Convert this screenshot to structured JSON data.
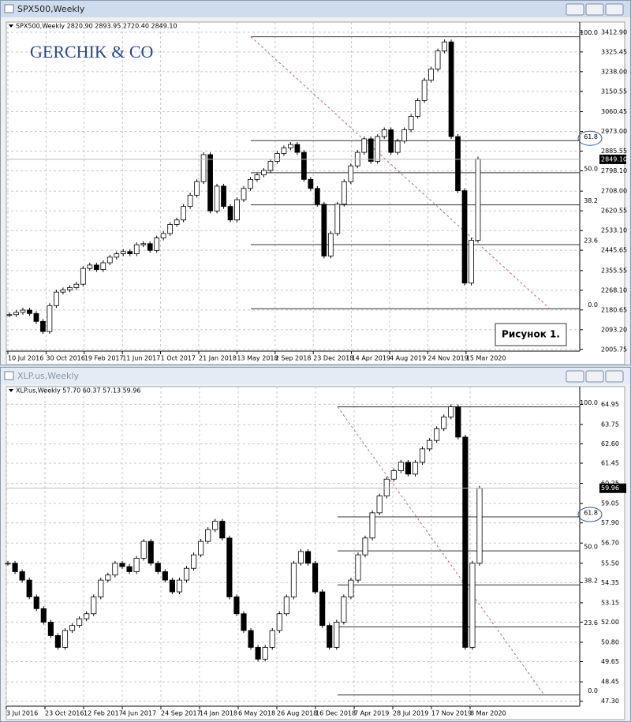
{
  "watermark": "GERCHIK & CO",
  "figure_label": "Рисунок 1.",
  "chart_data": [
    {
      "type": "candlestick",
      "title": "SPX500,Weekly",
      "subtitle": "SPX500,Weekly  2820.90 2893.95 2720.40 2849.10",
      "xtick_labels": [
        "10 Jul 2016",
        "30 Oct 2016",
        "19 Feb 2017",
        "11 Jun 2017",
        "1 Oct 2017",
        "21 Jan 2018",
        "13 May 2018",
        "2 Sep 2018",
        "23 Dec 2018",
        "14 Apr 2019",
        "4 Aug 2019",
        "24 Nov 2019",
        "15 Mar 2020"
      ],
      "closes": [
        2160,
        2170,
        2180,
        2165,
        2130,
        2085,
        2200,
        2260,
        2270,
        2280,
        2295,
        2365,
        2380,
        2360,
        2390,
        2415,
        2430,
        2440,
        2430,
        2470,
        2475,
        2445,
        2500,
        2520,
        2560,
        2580,
        2640,
        2690,
        2750,
        2870,
        2620,
        2730,
        2640,
        2580,
        2670,
        2720,
        2760,
        2780,
        2800,
        2840,
        2875,
        2900,
        2915,
        2880,
        2760,
        2720,
        2650,
        2420,
        2520,
        2650,
        2750,
        2820,
        2880,
        2940,
        2840,
        2950,
        2980,
        2880,
        2930,
        2980,
        3040,
        3110,
        3200,
        3250,
        3330,
        3370,
        2950,
        2710,
        2300,
        2490,
        2850
      ],
      "ylim": [
        1998,
        3458
      ],
      "yticks": [
        {
          "value": 3412.9,
          "label": "3412.90"
        },
        {
          "value": 3325.45,
          "label": "3325.45"
        },
        {
          "value": 3238,
          "label": "3238.00"
        },
        {
          "value": 3150.55,
          "label": "3150.55"
        },
        {
          "value": 3060.45,
          "label": "3060.45"
        },
        {
          "value": 2973,
          "label": "2973.00"
        },
        {
          "value": 2885.55,
          "label": "2885.55"
        },
        {
          "value": 2798.1,
          "label": "2798.10"
        },
        {
          "value": 2708,
          "label": "2708.00"
        },
        {
          "value": 2620.55,
          "label": "2620.55"
        },
        {
          "value": 2533.1,
          "label": "2533.10"
        },
        {
          "value": 2445.65,
          "label": "2445.65"
        },
        {
          "value": 2355.55,
          "label": "2355.55"
        },
        {
          "value": 2268.1,
          "label": "2268.10"
        },
        {
          "value": 2180.65,
          "label": "2180.65"
        },
        {
          "value": 2093.2,
          "label": "2093.20"
        },
        {
          "value": 2005.75,
          "label": "2005.75"
        }
      ],
      "last": {
        "value": 2849.1,
        "label": "2849.10"
      },
      "fib": {
        "high": 3393,
        "low": 2186,
        "levels": [
          {
            "value": 100,
            "label": "100.0"
          },
          {
            "value": 61.8,
            "label": "61.8"
          },
          {
            "value": 50,
            "label": "50.0"
          },
          {
            "value": 38.2,
            "label": "38.2"
          },
          {
            "value": 23.6,
            "label": "23.6"
          },
          {
            "value": 0,
            "label": "0.0"
          }
        ]
      },
      "grid": true
    },
    {
      "type": "candlestick",
      "title": "XLP.us,Weekly",
      "subtitle": "XLP.us,Weekly  57.70 60.37 57.13 59.96",
      "xtick_labels": [
        "3 Jul 2016",
        "23 Oct 2016",
        "12 Feb 2017",
        "4 Jun 2017",
        "24 Sep 2017",
        "14 Jan 2018",
        "6 May 2018",
        "26 Aug 2018",
        "16 Dec 2018",
        "7 Apr 2019",
        "28 Jul 2019",
        "17 Nov 2019",
        "8 Mar 2020"
      ],
      "closes": [
        55.5,
        55,
        54.5,
        53.5,
        52.8,
        52,
        51.2,
        50.5,
        51.5,
        51.8,
        52.2,
        52.5,
        53.5,
        54.5,
        54.8,
        55.5,
        55.3,
        55,
        55.8,
        56.8,
        55.5,
        55,
        54.5,
        53.8,
        54.5,
        55.2,
        56,
        56.8,
        57.5,
        58,
        57,
        53.5,
        52.5,
        51.5,
        50.5,
        49.8,
        50.5,
        51.5,
        52.5,
        53.5,
        55.5,
        56.2,
        55.5,
        53.8,
        51.8,
        50.5,
        52,
        53.5,
        54.5,
        56,
        57,
        58.5,
        59.5,
        60.5,
        61,
        61.5,
        60.8,
        61.5,
        62.3,
        62.8,
        63.5,
        64.2,
        64.8,
        63,
        50.5,
        55.5,
        59.96
      ],
      "ylim": [
        47.0,
        66.0
      ],
      "yticks": [
        {
          "value": 64.95,
          "label": "64.95"
        },
        {
          "value": 63.75,
          "label": "63.75"
        },
        {
          "value": 62.6,
          "label": "62.60"
        },
        {
          "value": 61.45,
          "label": "61.45"
        },
        {
          "value": 60.25,
          "label": "60.25"
        },
        {
          "value": 59.05,
          "label": "59.05"
        },
        {
          "value": 57.9,
          "label": "57.90"
        },
        {
          "value": 56.7,
          "label": "56.70"
        },
        {
          "value": 55.5,
          "label": "55.50"
        },
        {
          "value": 54.35,
          "label": "54.35"
        },
        {
          "value": 53.15,
          "label": "53.15"
        },
        {
          "value": 52,
          "label": "52.00"
        },
        {
          "value": 50.8,
          "label": "50.80"
        },
        {
          "value": 49.65,
          "label": "49.65"
        },
        {
          "value": 48.45,
          "label": "48.45"
        },
        {
          "value": 47.3,
          "label": "47.30"
        }
      ],
      "last": {
        "value": 59.96,
        "label": "59.96"
      },
      "fib": {
        "high": 64.8,
        "low": 47.67,
        "levels": [
          {
            "value": 100,
            "label": "100.0"
          },
          {
            "value": 61.8,
            "label": "61.8"
          },
          {
            "value": 50,
            "label": "50.0"
          },
          {
            "value": 38.2,
            "label": "38.2"
          },
          {
            "value": 23.6,
            "label": "23.6"
          },
          {
            "value": 0,
            "label": "0.0"
          }
        ]
      },
      "grid": true
    }
  ]
}
